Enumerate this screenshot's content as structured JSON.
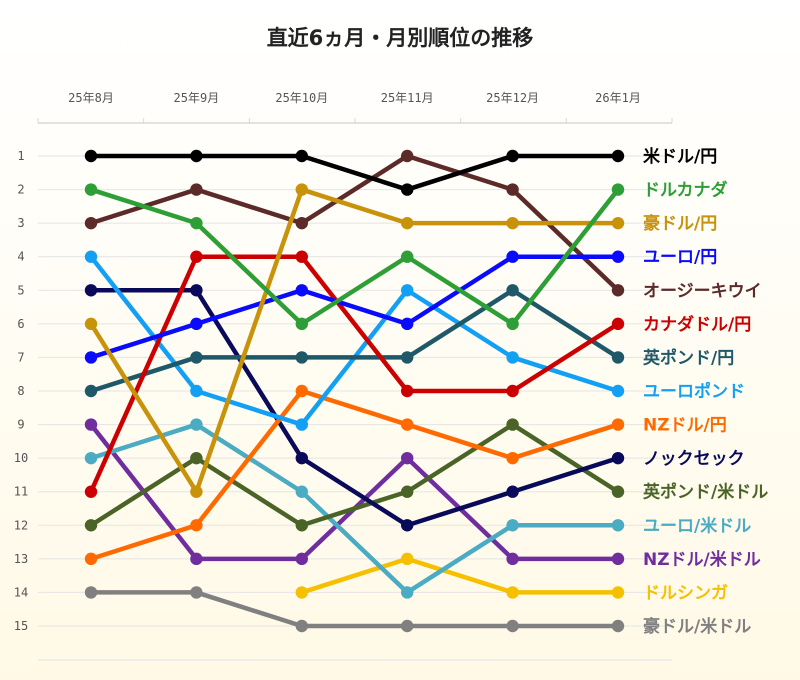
{
  "chart_data": {
    "type": "line",
    "subtype": "bump",
    "title": "直近6ヵ月・月別順位の推移",
    "categories": [
      "25年8月",
      "25年9月",
      "25年10月",
      "25年11月",
      "25年12月",
      "26年1月"
    ],
    "y_ticks": [
      "1",
      "2",
      "3",
      "4",
      "5",
      "6",
      "7",
      "8",
      "9",
      "10",
      "11",
      "12",
      "13",
      "14",
      "15"
    ],
    "ylim": [
      1,
      15
    ],
    "y_inverted": true,
    "grid": true,
    "legend": "right, labels at line ends",
    "series": [
      {
        "name": "米ドル/円",
        "color": "#000000",
        "values": [
          1,
          1,
          1,
          2,
          1,
          1
        ]
      },
      {
        "name": "ドルカナダ",
        "color": "#2e9e36",
        "values": [
          2,
          3,
          6,
          4,
          6,
          2
        ]
      },
      {
        "name": "豪ドル/円",
        "color": "#c8920a",
        "values": [
          6,
          11,
          2,
          3,
          3,
          3
        ]
      },
      {
        "name": "ユーロ/円",
        "color": "#0a0aff",
        "values": [
          7,
          6,
          5,
          6,
          4,
          4
        ]
      },
      {
        "name": "オージーキウイ",
        "color": "#5c2a28",
        "values": [
          3,
          2,
          3,
          1,
          2,
          5
        ]
      },
      {
        "name": "カナダドル/円",
        "color": "#cc0000",
        "values": [
          11,
          4,
          4,
          8,
          8,
          6
        ]
      },
      {
        "name": "英ポンド/円",
        "color": "#1f5868",
        "values": [
          8,
          7,
          7,
          7,
          5,
          7
        ]
      },
      {
        "name": "ユーロポンド",
        "color": "#12a0f5",
        "values": [
          4,
          8,
          9,
          5,
          7,
          8
        ]
      },
      {
        "name": "NZドル/円",
        "color": "#ff6a00",
        "values": [
          13,
          12,
          8,
          9,
          10,
          9
        ]
      },
      {
        "name": "ノックセック",
        "color": "#0a0a5a",
        "values": [
          5,
          5,
          10,
          12,
          11,
          10
        ]
      },
      {
        "name": "英ポンド/米ドル",
        "color": "#4a6326",
        "values": [
          12,
          10,
          12,
          11,
          9,
          11
        ]
      },
      {
        "name": "ユーロ/米ドル",
        "color": "#4aabc2",
        "values": [
          10,
          9,
          11,
          14,
          12,
          12
        ]
      },
      {
        "name": "NZドル/米ドル",
        "color": "#6f2d9e",
        "values": [
          9,
          13,
          13,
          10,
          13,
          13
        ]
      },
      {
        "name": "ドルシンガ",
        "color": "#f5c000",
        "values": [
          null,
          null,
          14,
          13,
          14,
          14
        ]
      },
      {
        "name": "豪ドル/米ドル",
        "color": "#808080",
        "values": [
          14,
          14,
          15,
          15,
          15,
          15
        ]
      }
    ]
  }
}
